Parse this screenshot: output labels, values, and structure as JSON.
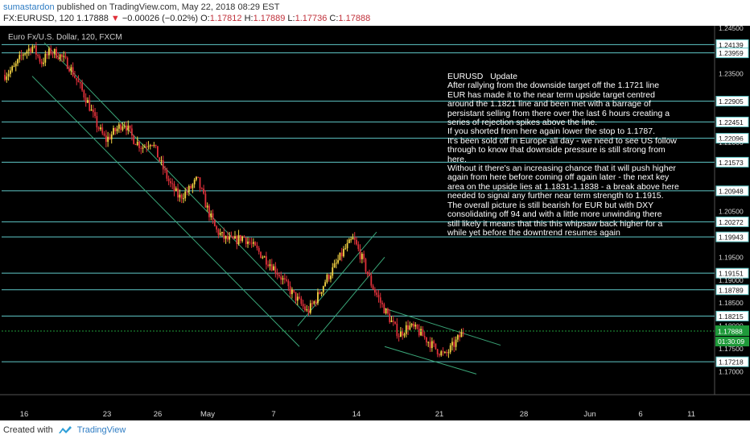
{
  "header": {
    "author": "sumastardon",
    "published_text": "published on TradingView.com, May 22, 2018 08:29 EST",
    "symbol": "FX:EURUSD, 120",
    "last": "1.17888",
    "change_arrow": "▼",
    "change": "−0.00026 (−0.02%)",
    "o_label": "O:",
    "o_value": "1.17812",
    "h_label": "H:",
    "h_value": "1.17889",
    "l_label": "L:",
    "l_value": "1.17736",
    "c_label": "C:",
    "c_value": "1.17888"
  },
  "chart_title": "Euro Fx/U.S. Dollar, 120, FXCM",
  "notes": "EURUSD   Update\nAfter rallying from the downside target off the 1.1721 line\nEUR has made it to the near term upside target centred\naround the 1.1821 line and been met with a barrage of\npersistant selling from there over the last 6 hours creating a\nseries of rejection spikes above the line.\nIf you shorted from here again lower the stop to 1.1787.\nIt's been sold off in Europe all day - we need to see US follow\nthrough to know that downside pressure is still strong from\nhere.\nWithout it there's an increasing chance that it will push higher\nagain from here before coming off again later - the next key\narea on the upside lies at 1.1831-1.1838 - a break above here\nneeded to signal any further near term strength to 1.1915.\nThe overall picture is still bearish for EUR but with DXY\nconsolidating off 94 and with a little more unwinding there\nstill likely it means that this this whipsaw back higher for a\nwhile yet before the downtrend resumes again",
  "footer": {
    "created_with": "Created with",
    "brand": "TradingView"
  },
  "colors": {
    "background": "#000000",
    "up": "#f5d442",
    "down": "#e0303a",
    "hline": "#5fc8c8",
    "channel": "#3aa678",
    "last_price_bg": "#1f9a3a",
    "axis_text": "#d8d8d8"
  },
  "chart_data": {
    "type": "candlestick",
    "title": "Euro Fx/U.S. Dollar, 120, FXCM",
    "x_tick_labels": [
      "16",
      "23",
      "26",
      "May",
      "7",
      "14",
      "21",
      "28",
      "Jun",
      "6",
      "11"
    ],
    "y_tick_labels": [
      "1.24500",
      "1.23500",
      "1.22000",
      "1.20500",
      "1.19500",
      "1.19000",
      "1.18500",
      "1.18000",
      "1.17500",
      "1.17000"
    ],
    "y_range": [
      1.165,
      1.2455
    ],
    "horizontal_levels": [
      1.24139,
      1.23959,
      1.22905,
      1.22451,
      1.22096,
      1.21573,
      1.20948,
      1.20272,
      1.19943,
      1.19151,
      1.18789,
      1.18215,
      1.17218
    ],
    "last_price": "1.17888",
    "countdown": "01:30:09",
    "price_path": [
      [
        1.2348,
        1.2362,
        1.2395,
        1.241,
        1.2375,
        1.24,
        1.239,
        1.2368,
        1.233,
        1.229,
        1.224,
        1.2205
      ],
      [
        1.2225,
        1.2245,
        1.2208,
        1.219,
        1.2205,
        1.2155,
        1.211,
        1.208,
        1.2095,
        1.212,
        1.206
      ],
      [
        1.201,
        1.199,
        1.1985,
        1.1995,
        1.1975,
        1.1955,
        1.1935,
        1.191,
        1.188,
        1.1855,
        1.183,
        1.186
      ],
      [
        1.19,
        1.193,
        1.1965,
        1.199,
        1.1945,
        1.189,
        1.185,
        1.1815,
        1.178,
        1.18,
        1.179,
        1.177
      ],
      [
        1.175,
        1.1735,
        1.176,
        1.1788
      ]
    ]
  }
}
